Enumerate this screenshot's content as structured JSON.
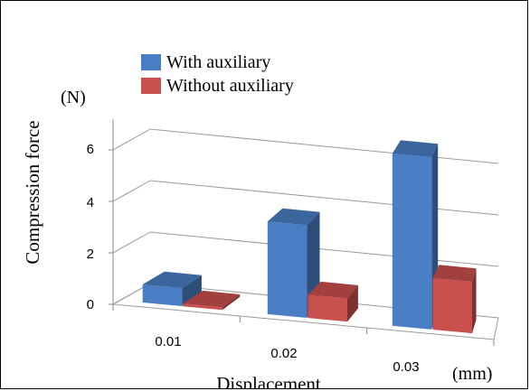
{
  "chart_data": {
    "type": "bar",
    "categories": [
      "0.01",
      "0.02",
      "0.03"
    ],
    "series": [
      {
        "name": "With auxiliary",
        "values": [
          0.7,
          3.6,
          6.7
        ],
        "color": "#4A7EC4"
      },
      {
        "name": "Without auxiliary",
        "values": [
          0.1,
          0.9,
          2.0
        ],
        "color": "#C9504D"
      }
    ],
    "ylabel": "Compression force",
    "yunit": "(N)",
    "xlabel": "Displacement",
    "xunit": "(mm)",
    "ylim": [
      0,
      7
    ],
    "yticks": [
      "0",
      "2",
      "4",
      "6"
    ],
    "grid": true,
    "legend_position": "top-left"
  }
}
